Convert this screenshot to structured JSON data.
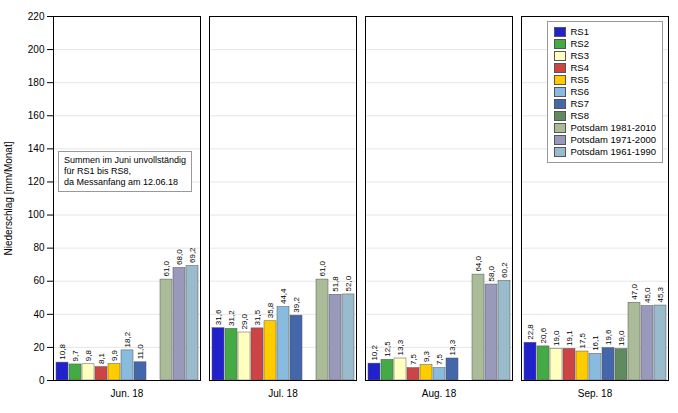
{
  "chart_data": {
    "type": "bar",
    "categories": [
      "Jun. 18",
      "Jul. 18",
      "Aug. 18",
      "Sep. 18"
    ],
    "series": [
      {
        "name": "RS1",
        "color": "#2222CC",
        "values": [
          10.8,
          31.6,
          10.2,
          22.8
        ],
        "value_labels": [
          "10,8",
          "31,6",
          "10,2",
          "22,8"
        ]
      },
      {
        "name": "RS2",
        "color": "#44AA44",
        "values": [
          9.7,
          31.2,
          12.5,
          20.6
        ],
        "value_labels": [
          "9,7",
          "31,2",
          "12,5",
          "20,6"
        ]
      },
      {
        "name": "RS3",
        "color": "#FFFFC0",
        "values": [
          9.8,
          29.0,
          13.3,
          19.0
        ],
        "value_labels": [
          "9,8",
          "29,0",
          "13,3",
          "19,0"
        ]
      },
      {
        "name": "RS4",
        "color": "#CC4444",
        "values": [
          8.1,
          31.5,
          7.5,
          19.1
        ],
        "value_labels": [
          "8,1",
          "31,5",
          "7,5",
          "19,1"
        ]
      },
      {
        "name": "RS5",
        "color": "#FFCC00",
        "values": [
          9.9,
          35.8,
          9.3,
          17.5
        ],
        "value_labels": [
          "9,9",
          "35,8",
          "9,3",
          "17,5"
        ]
      },
      {
        "name": "RS6",
        "color": "#88BBDD",
        "values": [
          18.2,
          44.4,
          7.5,
          16.1
        ],
        "value_labels": [
          "18,2",
          "44,4",
          "7,5",
          "16,1"
        ]
      },
      {
        "name": "RS7",
        "color": "#4466AA",
        "values": [
          11.0,
          39.2,
          13.3,
          19.6
        ],
        "value_labels": [
          "11,0",
          "39,2",
          "13,3",
          "19,6"
        ]
      },
      {
        "name": "RS8",
        "color": "#5F8B5F",
        "values": [
          null,
          null,
          null,
          19.0
        ],
        "value_labels": [
          null,
          null,
          null,
          "19,0"
        ]
      },
      {
        "name": "Potsdam 1981-2010",
        "color": "#AABB99",
        "values": [
          61.0,
          61.0,
          64.0,
          47.0
        ],
        "value_labels": [
          "61,0",
          "61,0",
          "64,0",
          "47,0"
        ]
      },
      {
        "name": "Potsdam 1971-2000",
        "color": "#9999BB",
        "values": [
          68.0,
          51.8,
          58.0,
          45.0
        ],
        "value_labels": [
          "68,0",
          "51,8",
          "58,0",
          "45,0"
        ]
      },
      {
        "name": "Potsdam 1961-1990",
        "color": "#99BBCC",
        "values": [
          69.2,
          52.0,
          60.2,
          45.3
        ],
        "value_labels": [
          "69,2",
          "52,0",
          "60,2",
          "45,3"
        ]
      }
    ],
    "ylabel": "Niederschlag [mm/Monat]",
    "ylim": [
      0,
      220
    ],
    "yticks": [
      0,
      20,
      40,
      60,
      80,
      100,
      120,
      140,
      160,
      180,
      200,
      220
    ],
    "grid": true,
    "legend": "upper right",
    "data_labels": true,
    "annotation": "Summen im Juni unvollständig\nfür RS1 bis RS8,\nda Messanfang am 12.06.18"
  }
}
